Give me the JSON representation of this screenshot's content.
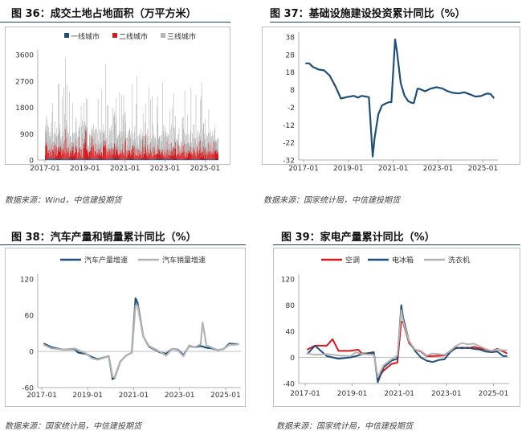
{
  "charts": [
    {
      "title": "图 36：成交土地占地面积（万平方米）",
      "source": "数据来源：Wind，中信建投期货",
      "chart_data": {
        "type": "bar",
        "legend": [
          "一线城市",
          "二线城市",
          "三线城市"
        ],
        "colors": [
          "#1f4e79",
          "#d7191c",
          "#b4b4b4"
        ],
        "stacked": true,
        "x_ticks": [
          "2017-01",
          "2019-01",
          "2021-01",
          "2023-01",
          "2025-01"
        ],
        "y_ticks": [
          "0",
          "900",
          "1800",
          "2700",
          "3600"
        ],
        "ylim": [
          0,
          3600
        ],
        "x_range": [
          "2017-01",
          "2025-09"
        ],
        "series": [
          {
            "name": "一线城市",
            "values_range": [
              0,
              150
            ]
          },
          {
            "name": "二线城市",
            "values_range": [
              50,
              1000
            ]
          },
          {
            "name": "三线城市",
            "values_range": [
              100,
              3600
            ]
          }
        ]
      }
    },
    {
      "title": "图 37：基础设施建设投资累计同比（%）",
      "source": "数据来源：国家统计局，中信建投期货",
      "chart_data": {
        "type": "line",
        "colors": [
          "#1f4e79"
        ],
        "x_ticks": [
          "2017-01",
          "2019-01",
          "2021-01",
          "2023-01",
          "2025-01"
        ],
        "y_ticks": [
          "38",
          "28",
          "18",
          "8",
          "-2",
          "-12",
          "-22",
          "-32"
        ],
        "ylim": [
          -32,
          38
        ],
        "series": [
          {
            "points": [
              [
                "2017-02",
                23
              ],
              [
                "2017-04",
                23
              ],
              [
                "2017-06",
                21
              ],
              [
                "2017-09",
                19.5
              ],
              [
                "2017-12",
                19
              ],
              [
                "2018-03",
                16
              ],
              [
                "2018-06",
                10
              ],
              [
                "2018-09",
                3
              ],
              [
                "2018-12",
                3.8
              ],
              [
                "2019-04",
                4.5
              ],
              [
                "2019-06",
                3.5
              ],
              [
                "2019-08",
                4.5
              ],
              [
                "2019-12",
                3.8
              ],
              [
                "2020-02",
                -30
              ],
              [
                "2020-03",
                -19.7
              ],
              [
                "2020-05",
                -6
              ],
              [
                "2020-07",
                -1
              ],
              [
                "2020-09",
                0.2
              ],
              [
                "2020-11",
                1
              ],
              [
                "2020-12",
                0.9
              ],
              [
                "2021-02",
                36.6
              ],
              [
                "2021-03",
                29.7
              ],
              [
                "2021-05",
                11.8
              ],
              [
                "2021-07",
                4.6
              ],
              [
                "2021-09",
                1.5
              ],
              [
                "2021-11",
                0.5
              ],
              [
                "2021-12",
                0.4
              ],
              [
                "2022-02",
                8.6
              ],
              [
                "2022-03",
                8.5
              ],
              [
                "2022-06",
                7.1
              ],
              [
                "2022-09",
                8.6
              ],
              [
                "2022-12",
                9.4
              ],
              [
                "2023-03",
                8.8
              ],
              [
                "2023-06",
                7.2
              ],
              [
                "2023-09",
                6.2
              ],
              [
                "2023-12",
                5.9
              ],
              [
                "2024-03",
                6.5
              ],
              [
                "2024-06",
                5.4
              ],
              [
                "2024-09",
                4.1
              ],
              [
                "2024-12",
                4.4
              ],
              [
                "2025-03",
                5.8
              ],
              [
                "2025-05",
                5.6
              ],
              [
                "2025-07",
                3.2
              ]
            ]
          }
        ]
      }
    },
    {
      "title": "图 38：汽车产量和销量累计同比（%）",
      "source": "数据来源：国家统计局，中信建投期货",
      "chart_data": {
        "type": "line",
        "legend": [
          "汽车产量增速",
          "汽车销量增速"
        ],
        "colors": [
          "#1f4e79",
          "#b4b4b4"
        ],
        "x_ticks": [
          "2017-01",
          "2019-01",
          "2021-01",
          "2023-01",
          "2025-01"
        ],
        "y_ticks": [
          "120",
          "60",
          "0",
          "-60"
        ],
        "ylim": [
          -60,
          120
        ],
        "series": [
          {
            "name": "汽车产量增速",
            "points": [
              [
                "2017-02",
                13
              ],
              [
                "2017-06",
                7
              ],
              [
                "2017-12",
                3
              ],
              [
                "2018-06",
                4
              ],
              [
                "2018-08",
                -2
              ],
              [
                "2018-12",
                -4
              ],
              [
                "2019-03",
                -9
              ],
              [
                "2019-06",
                -13
              ],
              [
                "2019-12",
                -8
              ],
              [
                "2020-02",
                -46
              ],
              [
                "2020-03",
                -44
              ],
              [
                "2020-06",
                -17
              ],
              [
                "2020-09",
                -7
              ],
              [
                "2020-12",
                -2
              ],
              [
                "2021-02",
                88
              ],
              [
                "2021-03",
                81
              ],
              [
                "2021-06",
                25
              ],
              [
                "2021-09",
                8
              ],
              [
                "2021-12",
                3
              ],
              [
                "2022-03",
                -2
              ],
              [
                "2022-06",
                -4
              ],
              [
                "2022-09",
                4
              ],
              [
                "2022-12",
                3
              ],
              [
                "2023-03",
                -6
              ],
              [
                "2023-06",
                9
              ],
              [
                "2023-09",
                7
              ],
              [
                "2023-12",
                9
              ],
              [
                "2024-03",
                6
              ],
              [
                "2024-06",
                5
              ],
              [
                "2024-09",
                2
              ],
              [
                "2024-12",
                4
              ],
              [
                "2025-03",
                13
              ],
              [
                "2025-06",
                12
              ],
              [
                "2025-08",
                12
              ]
            ]
          },
          {
            "name": "汽车销量增速",
            "points": [
              [
                "2017-02",
                11
              ],
              [
                "2017-06",
                5
              ],
              [
                "2017-12",
                3
              ],
              [
                "2018-06",
                5
              ],
              [
                "2018-12",
                -3
              ],
              [
                "2019-03",
                -11
              ],
              [
                "2019-06",
                -14
              ],
              [
                "2019-12",
                -8
              ],
              [
                "2020-02",
                -42
              ],
              [
                "2020-03",
                -43
              ],
              [
                "2020-06",
                -17
              ],
              [
                "2020-09",
                -7
              ],
              [
                "2020-12",
                -2
              ],
              [
                "2021-02",
                76
              ],
              [
                "2021-03",
                76
              ],
              [
                "2021-06",
                25
              ],
              [
                "2021-09",
                9
              ],
              [
                "2021-12",
                4
              ],
              [
                "2022-03",
                -1
              ],
              [
                "2022-06",
                -7
              ],
              [
                "2022-09",
                4
              ],
              [
                "2022-12",
                2
              ],
              [
                "2023-03",
                -8
              ],
              [
                "2023-06",
                10
              ],
              [
                "2023-09",
                7
              ],
              [
                "2023-12",
                12
              ],
              [
                "2024-01",
                48
              ],
              [
                "2024-03",
                10
              ],
              [
                "2024-06",
                6
              ],
              [
                "2024-09",
                2
              ],
              [
                "2024-12",
                4
              ],
              [
                "2025-03",
                11
              ],
              [
                "2025-06",
                11
              ],
              [
                "2025-08",
                12
              ]
            ]
          }
        ]
      }
    },
    {
      "title": "图 39：家电产量累计同比（%）",
      "source": "数据来源：国家统计局，中信建投期货",
      "chart_data": {
        "type": "line",
        "legend": [
          "空调",
          "电冰箱",
          "洗衣机"
        ],
        "colors": [
          "#d7191c",
          "#1f4e79",
          "#b4b4b4"
        ],
        "x_ticks": [
          "2017-01",
          "2019-01",
          "2021-01",
          "2023-01",
          "2025-01"
        ],
        "y_ticks": [
          "120",
          "80",
          "40",
          "0",
          "-40"
        ],
        "ylim": [
          -40,
          120
        ],
        "series": [
          {
            "name": "空调",
            "points": [
              [
                "2017-02",
                12
              ],
              [
                "2017-06",
                18
              ],
              [
                "2017-12",
                18
              ],
              [
                "2018-03",
                28
              ],
              [
                "2018-06",
                10
              ],
              [
                "2018-12",
                10
              ],
              [
                "2019-04",
                12
              ],
              [
                "2019-06",
                6
              ],
              [
                "2019-12",
                6
              ],
              [
                "2020-02",
                -32
              ],
              [
                "2020-05",
                -20
              ],
              [
                "2020-09",
                -10
              ],
              [
                "2020-12",
                -8
              ],
              [
                "2021-02",
                55
              ],
              [
                "2021-03",
                53
              ],
              [
                "2021-06",
                22
              ],
              [
                "2021-09",
                12
              ],
              [
                "2021-12",
                9
              ],
              [
                "2022-03",
                2
              ],
              [
                "2022-06",
                2
              ],
              [
                "2022-12",
                3
              ],
              [
                "2023-03",
                10
              ],
              [
                "2023-06",
                14
              ],
              [
                "2023-09",
                15
              ],
              [
                "2023-12",
                14
              ],
              [
                "2024-03",
                16
              ],
              [
                "2024-06",
                14
              ],
              [
                "2024-09",
                12
              ],
              [
                "2024-12",
                10
              ],
              [
                "2025-03",
                13
              ],
              [
                "2025-06",
                9
              ],
              [
                "2025-08",
                6
              ]
            ]
          },
          {
            "name": "电冰箱",
            "points": [
              [
                "2017-02",
                5
              ],
              [
                "2017-06",
                18
              ],
              [
                "2017-12",
                2
              ],
              [
                "2018-06",
                -2
              ],
              [
                "2018-12",
                0
              ],
              [
                "2019-03",
                2
              ],
              [
                "2019-06",
                5
              ],
              [
                "2019-12",
                8
              ],
              [
                "2020-02",
                -38
              ],
              [
                "2020-05",
                -15
              ],
              [
                "2020-09",
                -5
              ],
              [
                "2020-12",
                -2
              ],
              [
                "2021-02",
                80
              ],
              [
                "2021-03",
                60
              ],
              [
                "2021-06",
                25
              ],
              [
                "2021-09",
                10
              ],
              [
                "2021-12",
                0
              ],
              [
                "2022-03",
                -5
              ],
              [
                "2022-06",
                -7
              ],
              [
                "2022-09",
                -4
              ],
              [
                "2022-12",
                -3
              ],
              [
                "2023-03",
                8
              ],
              [
                "2023-06",
                15
              ],
              [
                "2023-09",
                14
              ],
              [
                "2023-12",
                15
              ],
              [
                "2024-03",
                13
              ],
              [
                "2024-06",
                12
              ],
              [
                "2024-09",
                9
              ],
              [
                "2024-12",
                8
              ],
              [
                "2025-03",
                9
              ],
              [
                "2025-06",
                2
              ],
              [
                "2025-08",
                2
              ]
            ]
          },
          {
            "name": "洗衣机",
            "points": [
              [
                "2017-02",
                6
              ],
              [
                "2017-06",
                4
              ],
              [
                "2017-12",
                5
              ],
              [
                "2018-06",
                3
              ],
              [
                "2018-12",
                2
              ],
              [
                "2019-03",
                8
              ],
              [
                "2019-06",
                5
              ],
              [
                "2019-12",
                4
              ],
              [
                "2020-02",
                -30
              ],
              [
                "2020-05",
                -12
              ],
              [
                "2020-09",
                -3
              ],
              [
                "2020-12",
                3
              ],
              [
                "2021-02",
                72
              ],
              [
                "2021-03",
                55
              ],
              [
                "2021-06",
                25
              ],
              [
                "2021-09",
                12
              ],
              [
                "2021-12",
                10
              ],
              [
                "2022-03",
                3
              ],
              [
                "2022-06",
                6
              ],
              [
                "2022-09",
                5
              ],
              [
                "2022-12",
                4
              ],
              [
                "2023-03",
                10
              ],
              [
                "2023-06",
                18
              ],
              [
                "2023-09",
                22
              ],
              [
                "2023-12",
                20
              ],
              [
                "2024-03",
                21
              ],
              [
                "2024-06",
                17
              ],
              [
                "2024-09",
                13
              ],
              [
                "2024-12",
                10
              ],
              [
                "2025-03",
                12
              ],
              [
                "2025-06",
                11
              ],
              [
                "2025-08",
                11
              ]
            ]
          }
        ]
      }
    }
  ]
}
